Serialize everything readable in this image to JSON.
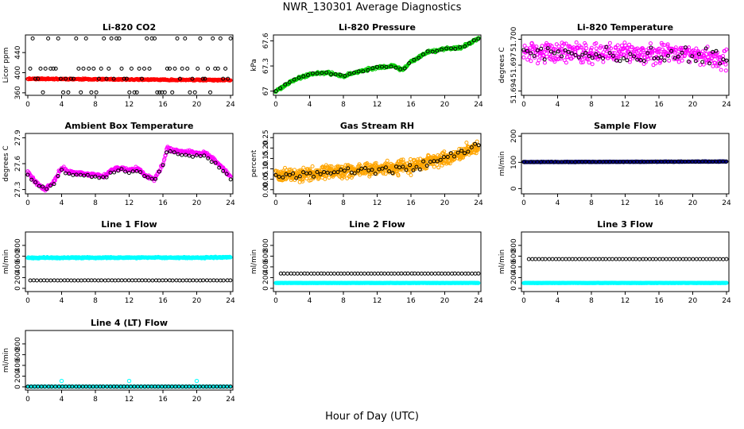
{
  "figure": {
    "title": "NWR_130301  Average Diagnostics",
    "xlabel": "Hour of Day (UTC)"
  },
  "chart_data": [
    {
      "type": "scatter",
      "title": "Li-820 CO2",
      "ylabel": "Licor ppm",
      "xlim": [
        0,
        24
      ],
      "xticks": [
        0,
        4,
        8,
        12,
        16,
        20,
        24
      ],
      "ylim": [
        355,
        475
      ],
      "yticks": [
        360,
        400,
        440
      ],
      "grid": false,
      "series": [
        {
          "color": "#ff0000",
          "x_range": [
            0,
            24
          ],
          "y_start": 388,
          "y_end": 385,
          "noise": 1.2,
          "n": 300,
          "seed": 11
        },
        {
          "color": "#000000",
          "x_range": [
            0.3,
            24
          ],
          "y_levels": [
            468,
            408,
            388,
            361
          ],
          "n": 80,
          "seed": 12
        }
      ]
    },
    {
      "type": "scatter",
      "title": "Li-820 Pressure",
      "ylabel": "kPa",
      "xlim": [
        0,
        24
      ],
      "xticks": [
        0,
        4,
        8,
        12,
        16,
        20,
        24
      ],
      "ylim": [
        66.95,
        67.67
      ],
      "yticks": [
        67.0,
        67.3,
        67.6
      ],
      "grid": false,
      "series": [
        {
          "color": "#00cc00",
          "x_range": [
            0,
            24
          ],
          "curve": [
            [
              0,
              67.0
            ],
            [
              2,
              67.13
            ],
            [
              4,
              67.2
            ],
            [
              6,
              67.22
            ],
            [
              8,
              67.18
            ],
            [
              10,
              67.24
            ],
            [
              12,
              67.28
            ],
            [
              14,
              67.3
            ],
            [
              15,
              67.25
            ],
            [
              16,
              67.35
            ],
            [
              18,
              67.47
            ],
            [
              20,
              67.5
            ],
            [
              22,
              67.52
            ],
            [
              24,
              67.63
            ]
          ],
          "noise": 0.015,
          "n": 320,
          "seed": 21
        },
        {
          "color": "#000000",
          "x_range": [
            0,
            24
          ],
          "curve": [
            [
              0,
              67.0
            ],
            [
              2,
              67.13
            ],
            [
              4,
              67.2
            ],
            [
              6,
              67.22
            ],
            [
              8,
              67.18
            ],
            [
              10,
              67.24
            ],
            [
              12,
              67.28
            ],
            [
              14,
              67.3
            ],
            [
              15,
              67.25
            ],
            [
              16,
              67.35
            ],
            [
              18,
              67.47
            ],
            [
              20,
              67.5
            ],
            [
              22,
              67.52
            ],
            [
              24,
              67.63
            ]
          ],
          "noise": 0.01,
          "n": 45,
          "seed": 22
        }
      ]
    },
    {
      "type": "scatter",
      "title": "Li-820 Temperature",
      "ylabel": "degrees C",
      "xlim": [
        0,
        24
      ],
      "xticks": [
        0,
        4,
        8,
        12,
        16,
        20,
        24
      ],
      "ylim": [
        51.6935,
        51.7005
      ],
      "yticks": [
        51.694,
        51.697,
        51.7
      ],
      "ytick_labels": [
        "51.694",
        "51.697",
        "51.700"
      ],
      "grid": false,
      "series": [
        {
          "color": "#ff00ff",
          "x_range": [
            0,
            24
          ],
          "curve": [
            [
              0,
              51.6985
            ],
            [
              12,
              51.6985
            ],
            [
              20,
              51.6983
            ],
            [
              24,
              51.6975
            ]
          ],
          "noise": 0.0011,
          "n": 420,
          "seed": 31
        },
        {
          "color": "#000000",
          "x_range": [
            0,
            24
          ],
          "curve": [
            [
              0,
              51.6985
            ],
            [
              24,
              51.698
            ]
          ],
          "noise": 0.001,
          "n": 60,
          "seed": 32
        }
      ]
    },
    {
      "type": "scatter",
      "title": "Ambient Box Temperature",
      "ylabel": "degrees C",
      "xlim": [
        0,
        24
      ],
      "xticks": [
        0,
        4,
        8,
        12,
        16,
        20,
        24
      ],
      "ylim": [
        27.25,
        27.95
      ],
      "yticks": [
        27.3,
        27.6,
        27.9
      ],
      "grid": false,
      "series": [
        {
          "color": "#ff00ff",
          "x_range": [
            0,
            24
          ],
          "curve": [
            [
              0,
              27.5
            ],
            [
              1,
              27.38
            ],
            [
              2,
              27.3
            ],
            [
              3,
              27.38
            ],
            [
              4,
              27.55
            ],
            [
              5,
              27.5
            ],
            [
              7,
              27.48
            ],
            [
              8,
              27.47
            ],
            [
              9,
              27.45
            ],
            [
              10,
              27.53
            ],
            [
              11,
              27.55
            ],
            [
              12,
              27.52
            ],
            [
              13,
              27.55
            ],
            [
              14,
              27.45
            ],
            [
              15,
              27.42
            ],
            [
              16,
              27.6
            ],
            [
              16.5,
              27.78
            ],
            [
              17,
              27.75
            ],
            [
              19,
              27.73
            ],
            [
              21,
              27.72
            ],
            [
              22,
              27.65
            ],
            [
              23,
              27.55
            ],
            [
              24,
              27.45
            ]
          ],
          "noise": 0.02,
          "n": 360,
          "seed": 41
        },
        {
          "color": "#000000",
          "x_range": [
            0,
            24
          ],
          "curve": [
            [
              0,
              27.48
            ],
            [
              1,
              27.36
            ],
            [
              2,
              27.3
            ],
            [
              3,
              27.36
            ],
            [
              4,
              27.52
            ],
            [
              5,
              27.48
            ],
            [
              7,
              27.46
            ],
            [
              8,
              27.45
            ],
            [
              9,
              27.43
            ],
            [
              10,
              27.5
            ],
            [
              11,
              27.53
            ],
            [
              12,
              27.5
            ],
            [
              13,
              27.52
            ],
            [
              14,
              27.44
            ],
            [
              15,
              27.41
            ],
            [
              16,
              27.58
            ],
            [
              16.5,
              27.75
            ],
            [
              17,
              27.72
            ],
            [
              19,
              27.7
            ],
            [
              21,
              27.68
            ],
            [
              22,
              27.62
            ],
            [
              23,
              27.52
            ],
            [
              24,
              27.42
            ]
          ],
          "noise": 0.015,
          "n": 55,
          "seed": 42
        }
      ]
    },
    {
      "type": "scatter",
      "title": "Gas Stream RH",
      "ylabel": "percent",
      "xlim": [
        0,
        24
      ],
      "xticks": [
        0,
        4,
        8,
        12,
        16,
        20,
        24
      ],
      "ylim": [
        -0.02,
        0.27
      ],
      "yticks": [
        0.0,
        0.05,
        0.1,
        0.15,
        0.2,
        0.25
      ],
      "ytick_labels": [
        "0.00",
        "0.05",
        "0.10",
        "0.15",
        "0.20",
        "0.25"
      ],
      "grid": false,
      "series": [
        {
          "color": "#ffa500",
          "x_range": [
            0,
            24
          ],
          "curve": [
            [
              0,
              0.07
            ],
            [
              6,
              0.08
            ],
            [
              12,
              0.1
            ],
            [
              16,
              0.11
            ],
            [
              20,
              0.15
            ],
            [
              24,
              0.2
            ]
          ],
          "noise": 0.03,
          "n": 700,
          "seed": 51
        },
        {
          "color": "#000000",
          "x_range": [
            0,
            24
          ],
          "curve": [
            [
              0,
              0.06
            ],
            [
              6,
              0.08
            ],
            [
              12,
              0.1
            ],
            [
              16,
              0.11
            ],
            [
              20,
              0.15
            ],
            [
              24,
              0.21
            ]
          ],
          "noise": 0.02,
          "n": 60,
          "seed": 52
        }
      ]
    },
    {
      "type": "scatter",
      "title": "Sample Flow",
      "ylabel": "ml/min",
      "xlim": [
        0,
        24
      ],
      "xticks": [
        0,
        4,
        8,
        12,
        16,
        20,
        24
      ],
      "ylim": [
        -20,
        210
      ],
      "yticks": [
        0,
        100,
        200
      ],
      "grid": false,
      "series": [
        {
          "color": "#00008b",
          "x_range": [
            0,
            24
          ],
          "curve": [
            [
              0,
              101
            ],
            [
              24,
              103
            ]
          ],
          "noise": 1.0,
          "n": 400,
          "seed": 61
        },
        {
          "color": "#000000",
          "x_range": [
            0,
            24
          ],
          "curve": [
            [
              0,
              101
            ],
            [
              24,
              103
            ]
          ],
          "noise": 0.5,
          "n": 60,
          "seed": 62
        }
      ]
    },
    {
      "type": "scatter",
      "title": "Line 1 Flow",
      "ylabel": "ml/min",
      "xlim": [
        0,
        24
      ],
      "xticks": [
        0,
        4,
        8,
        12,
        16,
        20,
        24
      ],
      "ylim": [
        -60,
        1050
      ],
      "yticks": [
        0,
        200,
        400,
        600,
        800
      ],
      "grid": false,
      "series": [
        {
          "color": "#00ffff",
          "x_range": [
            0,
            24
          ],
          "curve": [
            [
              0,
              568
            ],
            [
              24,
              575
            ]
          ],
          "noise": 12,
          "n": 420,
          "seed": 71
        },
        {
          "color": "#000000",
          "x_range": [
            0.3,
            24
          ],
          "curve": [
            [
              0,
              148
            ],
            [
              24,
              148
            ]
          ],
          "noise": 0.5,
          "n": 60,
          "seed": 72
        }
      ]
    },
    {
      "type": "scatter",
      "title": "Line 2 Flow",
      "ylabel": "ml/min",
      "xlim": [
        0,
        24
      ],
      "xticks": [
        0,
        4,
        8,
        12,
        16,
        20,
        24
      ],
      "ylim": [
        -60,
        1050
      ],
      "yticks": [
        0,
        200,
        400,
        600,
        800
      ],
      "grid": false,
      "series": [
        {
          "color": "#00ffff",
          "x_range": [
            0,
            24
          ],
          "curve": [
            [
              0,
              100
            ],
            [
              24,
              100
            ]
          ],
          "noise": 3,
          "n": 420,
          "seed": 81
        },
        {
          "color": "#000000",
          "x_range": [
            0.6,
            24
          ],
          "curve": [
            [
              0,
              275
            ],
            [
              24,
              275
            ]
          ],
          "noise": 0.5,
          "n": 60,
          "seed": 82
        }
      ]
    },
    {
      "type": "scatter",
      "title": "Line 3 Flow",
      "ylabel": "ml/min",
      "xlim": [
        0,
        24
      ],
      "xticks": [
        0,
        4,
        8,
        12,
        16,
        20,
        24
      ],
      "ylim": [
        -60,
        1050
      ],
      "yticks": [
        0,
        200,
        400,
        600,
        800
      ],
      "grid": false,
      "series": [
        {
          "color": "#00ffff",
          "x_range": [
            0,
            24
          ],
          "curve": [
            [
              0,
              100
            ],
            [
              24,
              100
            ]
          ],
          "noise": 3,
          "n": 420,
          "seed": 91
        },
        {
          "color": "#000000",
          "x_range": [
            0.6,
            24
          ],
          "curve": [
            [
              0,
              545
            ],
            [
              24,
              545
            ]
          ],
          "noise": 0.5,
          "n": 60,
          "seed": 92
        }
      ]
    },
    {
      "type": "scatter",
      "title": "Line 4 (LT) Flow",
      "ylabel": "ml/min",
      "xlim": [
        0,
        24
      ],
      "xticks": [
        0,
        4,
        8,
        12,
        16,
        20,
        24
      ],
      "ylim": [
        -60,
        1050
      ],
      "yticks": [
        0,
        200,
        400,
        600,
        800
      ],
      "grid": false,
      "series": [
        {
          "color": "#00ffff",
          "x_range": [
            0,
            24
          ],
          "curve": [
            [
              0,
              5
            ],
            [
              24,
              5
            ]
          ],
          "noise": 2,
          "n": 420,
          "seed": 101,
          "spikes": [
            [
              4,
              110
            ],
            [
              12,
              110
            ],
            [
              20,
              110
            ]
          ]
        },
        {
          "color": "#000000",
          "x_range": [
            0,
            24
          ],
          "curve": [
            [
              0,
              5
            ],
            [
              24,
              5
            ]
          ],
          "noise": 0.5,
          "n": 60,
          "seed": 102
        }
      ]
    }
  ]
}
